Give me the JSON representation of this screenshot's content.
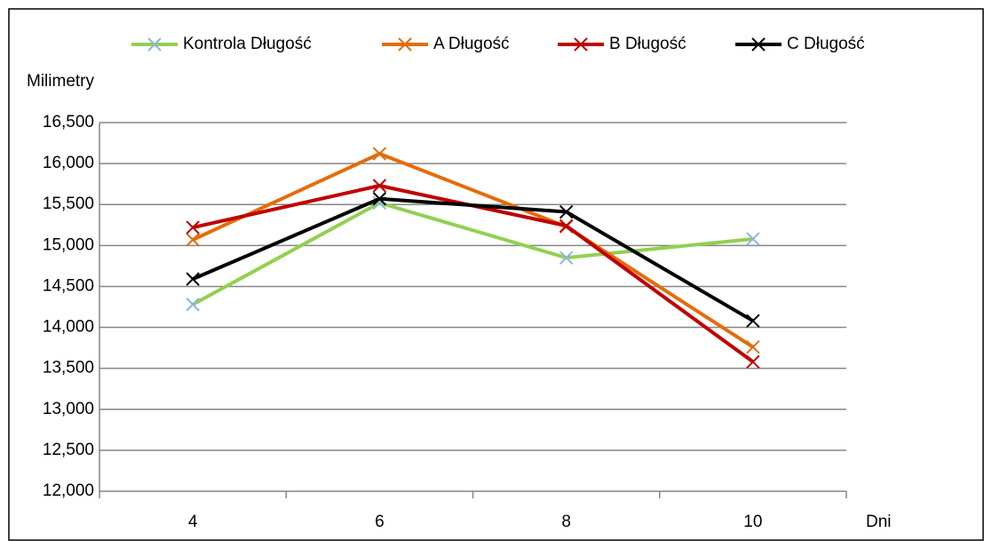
{
  "chart_data": {
    "type": "line",
    "y_label": "Milimetry",
    "x_label": "Dni",
    "categories": [
      "4",
      "6",
      "8",
      "10"
    ],
    "series": [
      {
        "name": "Kontrola Długość",
        "color": "#92d050",
        "marker_color": "#8eb4e3",
        "values": [
          14.28,
          15.52,
          14.85,
          15.08
        ]
      },
      {
        "name": "A Długość",
        "color": "#e46c0a",
        "marker_color": "#e46c0a",
        "values": [
          15.07,
          16.12,
          15.23,
          13.76
        ]
      },
      {
        "name": "B Długość",
        "color": "#c00000",
        "marker_color": "#c00000",
        "values": [
          15.22,
          15.73,
          15.24,
          13.58
        ]
      },
      {
        "name": "C Długość",
        "color": "#000000",
        "marker_color": "#000000",
        "values": [
          14.59,
          15.57,
          15.41,
          14.08
        ]
      }
    ],
    "ylim": [
      12,
      16.5
    ],
    "yticks": [
      {
        "value": 12,
        "label": "12,000"
      },
      {
        "value": 12.5,
        "label": "12,500"
      },
      {
        "value": 13,
        "label": "13,000"
      },
      {
        "value": 13.5,
        "label": "13,500"
      },
      {
        "value": 14,
        "label": "14,000"
      },
      {
        "value": 14.5,
        "label": "14,500"
      },
      {
        "value": 15,
        "label": "15,000"
      },
      {
        "value": 15.5,
        "label": "15,500"
      },
      {
        "value": 16,
        "label": "16,000"
      },
      {
        "value": 16.5,
        "label": "16,500"
      }
    ],
    "grid": true,
    "legend": "top"
  }
}
